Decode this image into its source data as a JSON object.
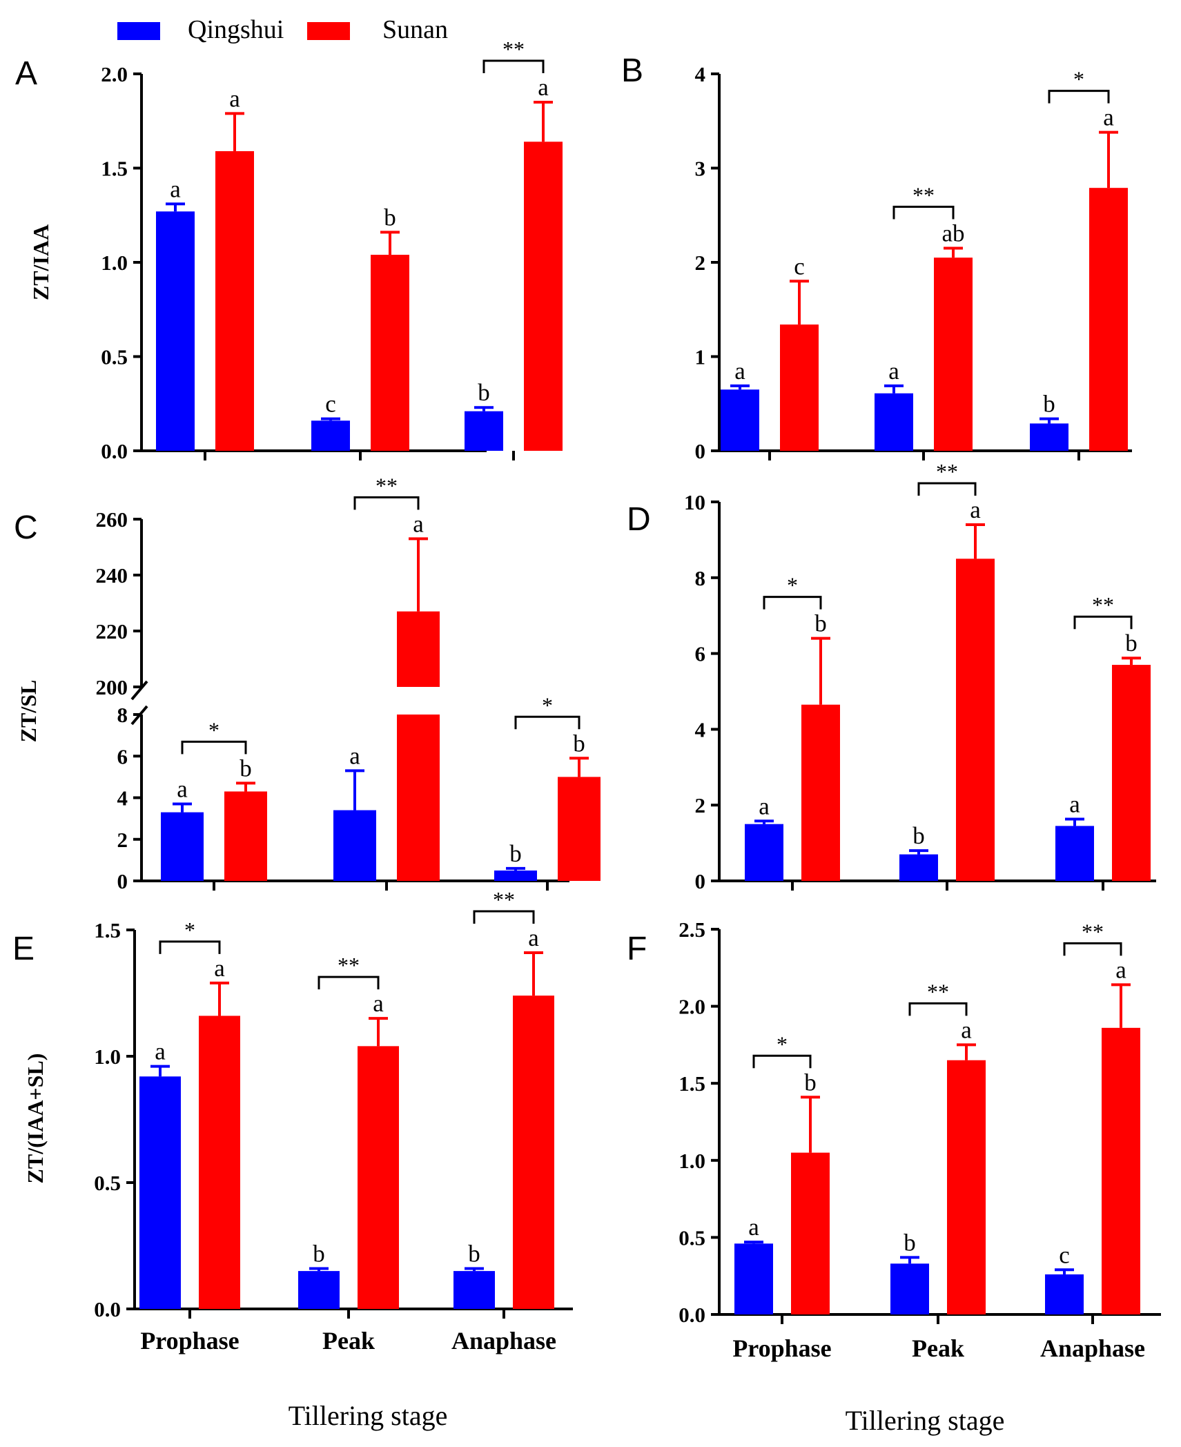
{
  "legend": [
    {
      "name": "Qingshui",
      "color": "#0000ff"
    },
    {
      "name": "Sunan",
      "color": "#ff0000"
    }
  ],
  "x_title_left": "Tillering stage",
  "x_title_right": "Tillering stage",
  "chart_data": [
    {
      "panel": "A",
      "type": "bar",
      "ylabel": "ZT/IAA",
      "categories": [
        "Prophase",
        "Peak",
        "Anaphase"
      ],
      "show_categories": false,
      "ylim": [
        0,
        2.0
      ],
      "ticks": [
        "0.0",
        "0.5",
        "1.0",
        "1.5",
        "2.0"
      ],
      "series": [
        {
          "name": "Qingshui",
          "values": [
            1.27,
            0.16,
            0.21
          ],
          "errors": [
            0.04,
            0.01,
            0.02
          ],
          "letters": [
            "a",
            "c",
            "b"
          ]
        },
        {
          "name": "Sunan",
          "values": [
            1.59,
            1.04,
            1.64
          ],
          "errors": [
            0.2,
            0.12,
            0.21
          ],
          "letters": [
            "a",
            "b",
            "a"
          ]
        }
      ],
      "significance": [
        "",
        "",
        "**"
      ]
    },
    {
      "panel": "B",
      "type": "bar",
      "ylabel": "",
      "categories": [
        "Prophase",
        "Peak",
        "Anaphase"
      ],
      "show_categories": false,
      "ylim": [
        0,
        4
      ],
      "ticks": [
        "0",
        "1",
        "2",
        "3",
        "4"
      ],
      "series": [
        {
          "name": "Qingshui",
          "values": [
            0.65,
            0.61,
            0.29
          ],
          "errors": [
            0.04,
            0.08,
            0.05
          ],
          "letters": [
            "a",
            "a",
            "b"
          ]
        },
        {
          "name": "Sunan",
          "values": [
            1.34,
            2.05,
            2.79
          ],
          "errors": [
            0.46,
            0.1,
            0.59
          ],
          "letters": [
            "c",
            "ab",
            "a"
          ]
        }
      ],
      "significance": [
        "",
        "**",
        "*"
      ]
    },
    {
      "panel": "C",
      "type": "bar",
      "ylabel": "ZT/SL",
      "broken_axis": true,
      "categories": [
        "Prophase",
        "Peak",
        "Anaphase"
      ],
      "show_categories": false,
      "ylim_lower": [
        0,
        8
      ],
      "ylim_upper": [
        200,
        260
      ],
      "ticks_lower": [
        "0",
        "2",
        "4",
        "6",
        "8"
      ],
      "ticks_upper": [
        "200",
        "220",
        "240",
        "260"
      ],
      "series": [
        {
          "name": "Qingshui",
          "values": [
            3.3,
            3.4,
            0.5
          ],
          "errors": [
            0.4,
            1.9,
            0.1
          ],
          "letters": [
            "a",
            "a",
            "b"
          ]
        },
        {
          "name": "Sunan",
          "values": [
            4.3,
            227,
            5.0
          ],
          "errors": [
            0.4,
            26,
            0.9
          ],
          "letters": [
            "b",
            "a",
            "b"
          ]
        }
      ],
      "significance": [
        "*",
        "**",
        "*"
      ]
    },
    {
      "panel": "D",
      "type": "bar",
      "ylabel": "",
      "categories": [
        "Prophase",
        "Peak",
        "Anaphase"
      ],
      "show_categories": false,
      "ylim": [
        0,
        10
      ],
      "ticks": [
        "0",
        "2",
        "4",
        "6",
        "8",
        "10"
      ],
      "series": [
        {
          "name": "Qingshui",
          "values": [
            1.5,
            0.7,
            1.45
          ],
          "errors": [
            0.08,
            0.1,
            0.18
          ],
          "letters": [
            "a",
            "b",
            "a"
          ]
        },
        {
          "name": "Sunan",
          "values": [
            4.65,
            8.5,
            5.7
          ],
          "errors": [
            1.75,
            0.9,
            0.18
          ],
          "letters": [
            "b",
            "a",
            "b"
          ]
        }
      ],
      "significance": [
        "*",
        "**",
        "**"
      ]
    },
    {
      "panel": "E",
      "type": "bar",
      "ylabel": "ZT/(IAA+SL)",
      "categories": [
        "Prophase",
        "Peak",
        "Anaphase"
      ],
      "show_categories": true,
      "ylim": [
        0,
        1.5
      ],
      "ticks": [
        "0.0",
        "0.5",
        "1.0",
        "1.5"
      ],
      "series": [
        {
          "name": "Qingshui",
          "values": [
            0.92,
            0.15,
            0.15
          ],
          "errors": [
            0.04,
            0.01,
            0.01
          ],
          "letters": [
            "a",
            "b",
            "b"
          ]
        },
        {
          "name": "Sunan",
          "values": [
            1.16,
            1.04,
            1.24
          ],
          "errors": [
            0.13,
            0.11,
            0.17
          ],
          "letters": [
            "a",
            "a",
            "a"
          ]
        }
      ],
      "significance": [
        "*",
        "**",
        "**"
      ]
    },
    {
      "panel": "F",
      "type": "bar",
      "ylabel": "",
      "categories": [
        "Prophase",
        "Peak",
        "Anaphase"
      ],
      "show_categories": true,
      "ylim": [
        0,
        2.5
      ],
      "ticks": [
        "0.0",
        "0.5",
        "1.0",
        "1.5",
        "2.0",
        "2.5"
      ],
      "series": [
        {
          "name": "Qingshui",
          "values": [
            0.46,
            0.33,
            0.26
          ],
          "errors": [
            0.01,
            0.04,
            0.03
          ],
          "letters": [
            "a",
            "b",
            "c"
          ]
        },
        {
          "name": "Sunan",
          "values": [
            1.05,
            1.65,
            1.86
          ],
          "errors": [
            0.36,
            0.1,
            0.28
          ],
          "letters": [
            "b",
            "a",
            "a"
          ]
        }
      ],
      "significance": [
        "*",
        "**",
        "**"
      ]
    }
  ]
}
